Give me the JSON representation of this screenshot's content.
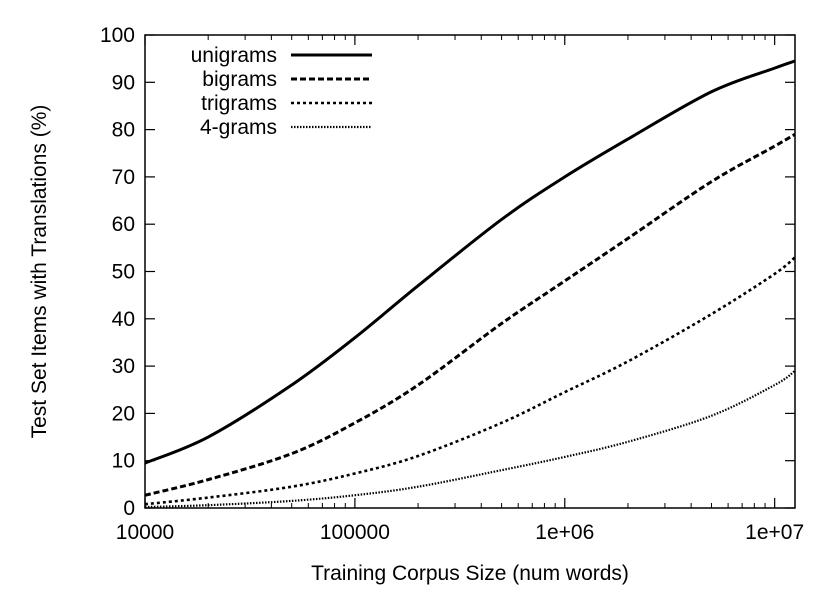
{
  "chart_data": {
    "type": "line",
    "xlabel": "Training Corpus Size (num words)",
    "ylabel": "Test Set Items with Translations (%)",
    "x_scale": "log",
    "xlim": [
      10000,
      12500000
    ],
    "ylim": [
      0,
      100
    ],
    "x_ticks": [
      10000,
      100000,
      1000000,
      10000000
    ],
    "x_tick_labels": [
      "10000",
      "100000",
      "1e+06",
      "1e+07"
    ],
    "y_ticks": [
      0,
      10,
      20,
      30,
      40,
      50,
      60,
      70,
      80,
      90,
      100
    ],
    "y_tick_labels": [
      "0",
      "10",
      "20",
      "30",
      "40",
      "50",
      "60",
      "70",
      "80",
      "90",
      "100"
    ],
    "grid": false,
    "legend_position": "top-left",
    "x": [
      10000,
      20000,
      50000,
      100000,
      200000,
      500000,
      1000000,
      2000000,
      5000000,
      10000000,
      12500000
    ],
    "series": [
      {
        "name": "unigrams",
        "style": "solid",
        "values": [
          9.5,
          15,
          26,
          36,
          47,
          61,
          70,
          78,
          88,
          93,
          94.5
        ]
      },
      {
        "name": "bigrams",
        "style": "dashed",
        "values": [
          2.7,
          6,
          11.5,
          18,
          26,
          39,
          48,
          57,
          69,
          76.5,
          79
        ]
      },
      {
        "name": "trigrams",
        "style": "dotted",
        "values": [
          0.8,
          2.2,
          4.5,
          7.3,
          11,
          18,
          24.5,
          31,
          41,
          49.5,
          53
        ]
      },
      {
        "name": "4-grams",
        "style": "fine-dotted",
        "values": [
          0.2,
          0.6,
          1.5,
          2.7,
          4.5,
          8,
          10.8,
          14,
          19.5,
          26,
          29
        ]
      }
    ]
  }
}
